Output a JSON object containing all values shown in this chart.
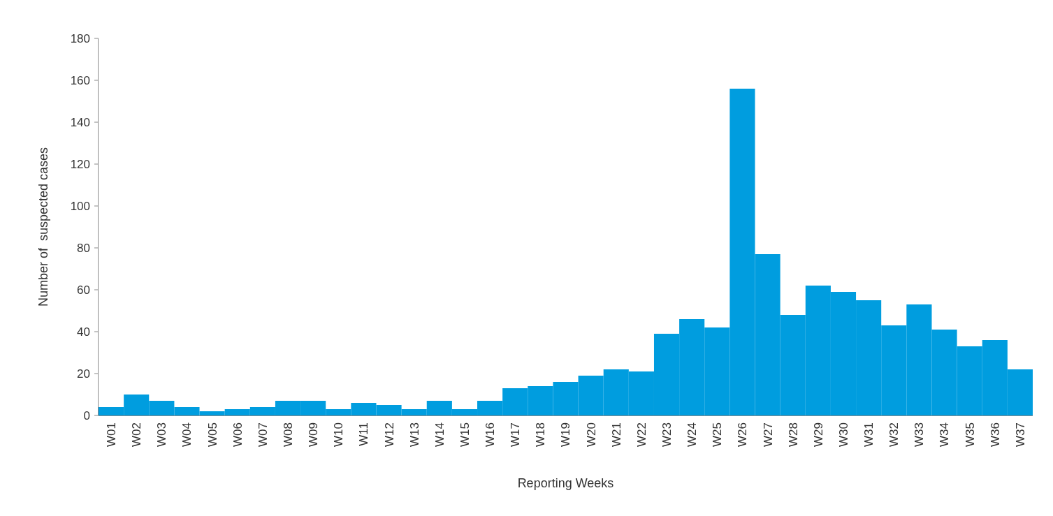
{
  "chart_data": {
    "type": "bar",
    "xlabel": "Reporting Weeks",
    "ylabel": "Number of  suspected cases",
    "categories": [
      "W01",
      "W02",
      "W03",
      "W04",
      "W05",
      "W06",
      "W07",
      "W08",
      "W09",
      "W10",
      "W11",
      "W12",
      "W13",
      "W14",
      "W15",
      "W16",
      "W17",
      "W18",
      "W19",
      "W20",
      "W21",
      "W22",
      "W23",
      "W24",
      "W25",
      "W26",
      "W27",
      "W28",
      "W29",
      "W30",
      "W31",
      "W32",
      "W33",
      "W34",
      "W35",
      "W36",
      "W37"
    ],
    "values": [
      4,
      10,
      7,
      4,
      2,
      3,
      4,
      7,
      7,
      3,
      6,
      5,
      3,
      7,
      3,
      7,
      13,
      14,
      16,
      19,
      22,
      21,
      39,
      46,
      42,
      156,
      77,
      48,
      62,
      59,
      55,
      43,
      53,
      41,
      33,
      36,
      22
    ],
    "color": "#009ddf",
    "ylim": [
      0,
      180
    ],
    "yticks": [
      0,
      20,
      40,
      60,
      80,
      100,
      120,
      140,
      160,
      180
    ],
    "grid": false
  }
}
